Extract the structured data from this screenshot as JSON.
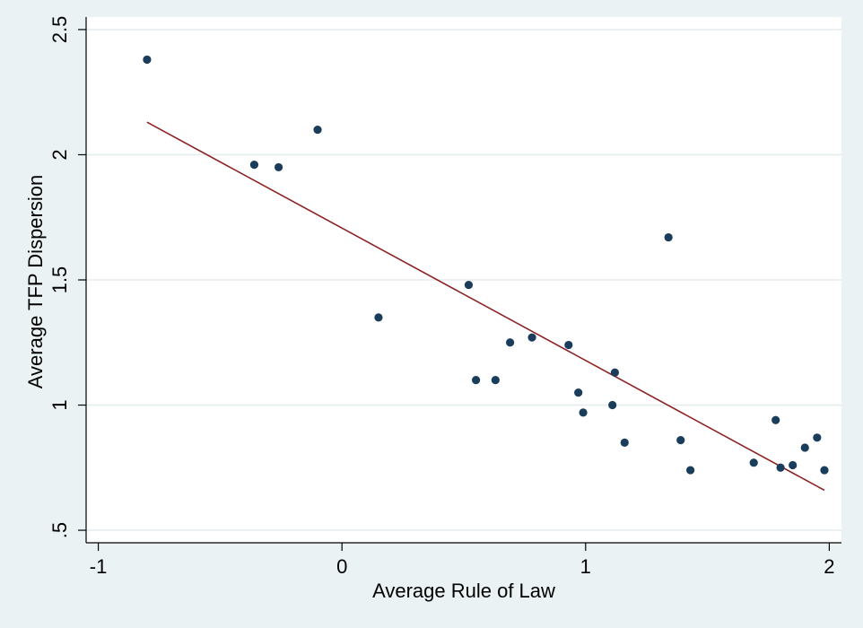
{
  "chart_data": {
    "type": "scatter",
    "xlabel": "Average Rule of Law",
    "ylabel": "Average TFP Dispersion",
    "xlim": [
      -1.05,
      2.05
    ],
    "ylim": [
      0.45,
      2.55
    ],
    "x_ticks": [
      -1,
      0,
      1,
      2
    ],
    "x_tick_labels": [
      "-1",
      "0",
      "1",
      "2"
    ],
    "y_ticks": [
      0.5,
      1,
      1.5,
      2,
      2.5
    ],
    "y_tick_labels": [
      ".5",
      "1",
      "1.5",
      "2",
      "2.5"
    ],
    "grid": "horizontal",
    "colors": {
      "background": "#eaf2f3",
      "plot_background": "#ffffff",
      "grid": "#e6ecee",
      "points": "#1b3d5c",
      "fit_line": "#8b2324"
    },
    "series": [
      {
        "kind": "points",
        "x": [
          -0.8,
          -0.36,
          -0.26,
          -0.1,
          0.15,
          0.52,
          0.55,
          0.63,
          0.69,
          0.78,
          0.93,
          0.97,
          0.99,
          1.11,
          1.12,
          1.16,
          1.34,
          1.39,
          1.43,
          1.69,
          1.78,
          1.8,
          1.85,
          1.9,
          1.95,
          1.98
        ],
        "y": [
          2.38,
          1.96,
          1.95,
          2.1,
          1.35,
          1.48,
          1.1,
          1.1,
          1.25,
          1.27,
          1.24,
          1.05,
          0.97,
          1.0,
          1.13,
          0.85,
          1.67,
          0.86,
          0.74,
          0.77,
          0.94,
          0.75,
          0.76,
          0.83,
          0.87,
          0.74
        ]
      },
      {
        "kind": "fitted-line",
        "x": [
          -0.8,
          1.98
        ],
        "y": [
          2.13,
          0.66
        ]
      }
    ]
  }
}
